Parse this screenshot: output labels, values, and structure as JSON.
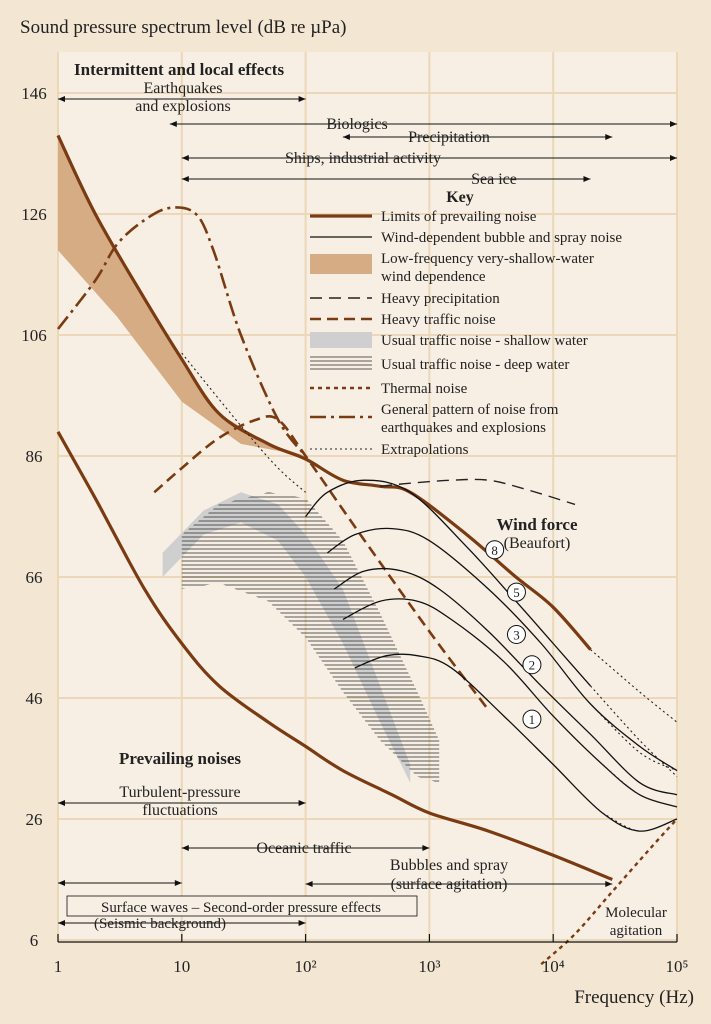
{
  "chart_data": {
    "type": "line",
    "title": "Sound pressure spectrum level (dB re µPa)",
    "xlabel": "Frequency (Hz)",
    "x_scale": "log",
    "xlim": [
      1,
      100000
    ],
    "ylim": [
      6,
      146
    ],
    "x_ticks": [
      {
        "v": 1,
        "label": "1"
      },
      {
        "v": 10,
        "label": "10"
      },
      {
        "v": 100,
        "label": "10²"
      },
      {
        "v": 1000,
        "label": "10³"
      },
      {
        "v": 10000,
        "label": "10⁴"
      },
      {
        "v": 100000,
        "label": "10⁵"
      }
    ],
    "y_ticks": [
      146,
      126,
      106,
      86,
      66,
      46,
      26,
      6
    ],
    "grid": true,
    "headings": {
      "intermittent": "Intermittent and local effects",
      "prevailing": "Prevailing noises",
      "wind_force": "Wind force",
      "beaufort": "(Beaufort)"
    },
    "key": {
      "title": "Key",
      "items": [
        {
          "style": "limits",
          "label": "Limits of prevailing noise"
        },
        {
          "style": "wind",
          "label": "Wind-dependent bubble and spray noise"
        },
        {
          "style": "shallowband",
          "label": "Low-frequency very-shallow-water",
          "label2": "wind dependence"
        },
        {
          "style": "heavy_precip",
          "label": "Heavy precipitation"
        },
        {
          "style": "heavy_traffic",
          "label": "Heavy traffic noise"
        },
        {
          "style": "traffic_shallow",
          "label": "Usual traffic noise - shallow water"
        },
        {
          "style": "traffic_deep",
          "label": "Usual traffic noise - deep water"
        },
        {
          "style": "thermal",
          "label": "Thermal noise"
        },
        {
          "style": "earthquake",
          "label": "General pattern of noise from",
          "label2": "earthquakes and explosions"
        },
        {
          "style": "extrap",
          "label": "Extrapolations"
        }
      ]
    },
    "top_ranges": [
      {
        "label": "Earthquakes",
        "label2": "and explosions",
        "from": 1,
        "to": 100
      },
      {
        "label": "Biologics",
        "from": 8,
        "to": 100000
      },
      {
        "label": "Precipitation",
        "from": 200,
        "to": 30000
      },
      {
        "label": "Ships, industrial activity",
        "from": 10,
        "to": 100000
      },
      {
        "label": "Sea ice",
        "from": 10,
        "to": 20000
      }
    ],
    "bottom_ranges": [
      {
        "label": "Turbulent-pressure",
        "label2": "fluctuations",
        "from": 1,
        "to": 100
      },
      {
        "label": "Oceanic traffic",
        "from": 10,
        "to": 1000
      },
      {
        "label": "Bubbles and spray",
        "label2": "(surface agitation)",
        "from": 100,
        "to": 30000
      },
      {
        "label": "Surface waves – Second-order pressure effects",
        "from": 1,
        "to": 10
      },
      {
        "label": "(Seismic background)",
        "from": 1,
        "to": 100
      },
      {
        "label": "Molecular",
        "label2": "agitation"
      }
    ],
    "series": [
      {
        "style": "limits",
        "points": [
          [
            1,
            139
          ],
          [
            2,
            126
          ],
          [
            5,
            112
          ],
          [
            10,
            102
          ],
          [
            20,
            93
          ],
          [
            50,
            88
          ],
          [
            100,
            85.5
          ],
          [
            200,
            82
          ],
          [
            400,
            81
          ],
          [
            700,
            80
          ],
          [
            2000,
            73
          ],
          [
            5000,
            66
          ],
          [
            10000,
            61
          ],
          [
            20000,
            54
          ]
        ]
      },
      {
        "style": "limits",
        "points": [
          [
            1,
            90
          ],
          [
            2,
            79
          ],
          [
            5,
            64
          ],
          [
            10,
            55
          ],
          [
            20,
            48
          ],
          [
            50,
            42
          ],
          [
            100,
            38
          ],
          [
            200,
            34
          ],
          [
            500,
            30
          ],
          [
            1000,
            27
          ],
          [
            3000,
            24
          ],
          [
            10000,
            20
          ],
          [
            30000,
            16
          ]
        ]
      },
      {
        "style": "extrap",
        "points": [
          [
            10,
            103
          ],
          [
            30,
            91
          ],
          [
            60,
            84
          ],
          [
            100,
            80
          ]
        ]
      },
      {
        "style": "extrap",
        "points": [
          [
            20000,
            54
          ],
          [
            50000,
            47
          ],
          [
            100000,
            42
          ]
        ]
      },
      {
        "style": "heavy_precip",
        "points": [
          [
            400,
            81
          ],
          [
            700,
            81.5
          ],
          [
            1500,
            82
          ],
          [
            3000,
            82
          ],
          [
            6000,
            80.5
          ],
          [
            15000,
            78
          ]
        ]
      },
      {
        "style": "heavy_traffic",
        "points": [
          [
            6,
            80
          ],
          [
            10,
            84
          ],
          [
            20,
            89
          ],
          [
            40,
            92
          ],
          [
            60,
            92
          ],
          [
            100,
            86
          ],
          [
            300,
            72
          ],
          [
            1000,
            57
          ],
          [
            3000,
            44
          ]
        ]
      },
      {
        "style": "earthquake",
        "points": [
          [
            1,
            107
          ],
          [
            2,
            115
          ],
          [
            3,
            121
          ],
          [
            5,
            125
          ],
          [
            8,
            127
          ],
          [
            13,
            126
          ],
          [
            18,
            120
          ],
          [
            30,
            106
          ],
          [
            60,
            92
          ],
          [
            100,
            86
          ]
        ]
      },
      {
        "style": "thermal",
        "points": [
          [
            8000,
            2
          ],
          [
            15000,
            7
          ],
          [
            30000,
            14
          ],
          [
            60000,
            21
          ],
          [
            100000,
            26
          ]
        ]
      },
      {
        "style": "wind",
        "label": "8",
        "points": [
          [
            100,
            76
          ],
          [
            150,
            80
          ],
          [
            300,
            82
          ],
          [
            700,
            80
          ],
          [
            2000,
            71
          ],
          [
            5000,
            62
          ],
          [
            10000,
            55
          ],
          [
            20000,
            48
          ]
        ]
      },
      {
        "style": "wind",
        "label": "5",
        "points": [
          [
            150,
            70
          ],
          [
            250,
            73
          ],
          [
            500,
            74
          ],
          [
            1000,
            72
          ],
          [
            3000,
            64
          ],
          [
            8000,
            55
          ],
          [
            20000,
            45
          ],
          [
            50000,
            38
          ],
          [
            100000,
            34
          ]
        ]
      },
      {
        "style": "wind",
        "label": "3",
        "points": [
          [
            170,
            64
          ],
          [
            300,
            67
          ],
          [
            600,
            67
          ],
          [
            1200,
            64
          ],
          [
            3000,
            57
          ],
          [
            8000,
            48
          ],
          [
            20000,
            40
          ],
          [
            50000,
            32
          ],
          [
            100000,
            30
          ]
        ]
      },
      {
        "style": "wind",
        "label": "2",
        "points": [
          [
            200,
            59
          ],
          [
            400,
            62
          ],
          [
            800,
            62
          ],
          [
            1500,
            59
          ],
          [
            4000,
            52
          ],
          [
            10000,
            43
          ],
          [
            25000,
            35
          ],
          [
            50000,
            30
          ],
          [
            100000,
            28
          ]
        ]
      },
      {
        "style": "wind",
        "label": "1",
        "points": [
          [
            250,
            51
          ],
          [
            450,
            53
          ],
          [
            800,
            53
          ],
          [
            1500,
            51
          ],
          [
            4000,
            43
          ],
          [
            10000,
            35
          ],
          [
            25000,
            27
          ],
          [
            50000,
            24
          ],
          [
            100000,
            26
          ]
        ]
      },
      {
        "style": "extrap",
        "points": [
          [
            20000,
            48
          ],
          [
            50000,
            39
          ],
          [
            100000,
            33
          ]
        ]
      },
      {
        "style": "extrap",
        "points": [
          [
            20000,
            45
          ],
          [
            50000,
            37
          ],
          [
            100000,
            34
          ]
        ]
      },
      {
        "style": "extrap",
        "points": [
          [
            25000,
            35
          ],
          [
            50000,
            30
          ],
          [
            100000,
            28
          ]
        ]
      },
      {
        "style": "extrap",
        "points": [
          [
            25000,
            27
          ],
          [
            50000,
            24
          ],
          [
            100000,
            26
          ]
        ]
      }
    ],
    "bands": [
      {
        "style": "shallowband",
        "upper": [
          [
            1,
            139
          ],
          [
            2,
            126
          ],
          [
            5,
            112
          ],
          [
            10,
            102
          ],
          [
            20,
            93
          ],
          [
            50,
            88
          ],
          [
            100,
            86
          ]
        ],
        "lower": [
          [
            1,
            120
          ],
          [
            3,
            109
          ],
          [
            10,
            95
          ],
          [
            30,
            88
          ],
          [
            100,
            86
          ]
        ]
      },
      {
        "style": "traffic_shallow",
        "upper": [
          [
            7,
            70
          ],
          [
            15,
            77
          ],
          [
            30,
            80
          ],
          [
            60,
            78
          ],
          [
            100,
            73
          ],
          [
            200,
            64
          ],
          [
            400,
            48
          ],
          [
            700,
            35
          ]
        ],
        "lower": [
          [
            7,
            66
          ],
          [
            15,
            73
          ],
          [
            30,
            75
          ],
          [
            60,
            72
          ],
          [
            100,
            66
          ],
          [
            200,
            55
          ],
          [
            400,
            42
          ],
          [
            700,
            32
          ]
        ]
      },
      {
        "style": "traffic_deep",
        "upper": [
          [
            10,
            73
          ],
          [
            20,
            78
          ],
          [
            50,
            80
          ],
          [
            100,
            79
          ],
          [
            200,
            72
          ],
          [
            400,
            60
          ],
          [
            800,
            47
          ],
          [
            1200,
            39
          ]
        ],
        "lower": [
          [
            10,
            64
          ],
          [
            20,
            65
          ],
          [
            50,
            62
          ],
          [
            100,
            56
          ],
          [
            200,
            47
          ],
          [
            400,
            39
          ],
          [
            800,
            33
          ],
          [
            1200,
            32
          ]
        ]
      }
    ]
  }
}
